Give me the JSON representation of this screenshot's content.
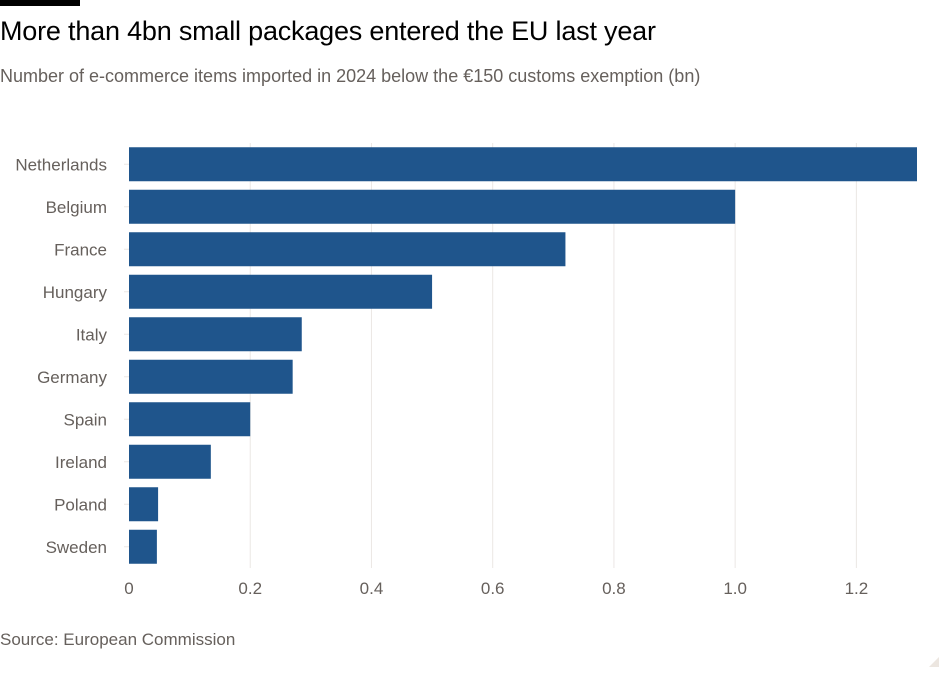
{
  "header": {
    "title": "More than 4bn small packages entered the EU last year",
    "subtitle": "Number of e-commerce items imported in 2024 below the €150 customs exemption (bn)"
  },
  "footer": {
    "source": "Source: European Commission"
  },
  "colors": {
    "bar": "#1f558c",
    "gridline": "#ebe7e4",
    "axis_text": "#66605c"
  },
  "chart_data": {
    "type": "bar",
    "orientation": "horizontal",
    "title": "More than 4bn small packages entered the EU last year",
    "subtitle": "Number of e-commerce items imported in 2024 below the €150 customs exemption (bn)",
    "categories": [
      "Netherlands",
      "Belgium",
      "France",
      "Hungary",
      "Italy",
      "Germany",
      "Spain",
      "Ireland",
      "Poland",
      "Sweden"
    ],
    "values": [
      1.3,
      1.0,
      0.72,
      0.5,
      0.285,
      0.27,
      0.2,
      0.135,
      0.048,
      0.046
    ],
    "xlim": [
      0,
      1.3
    ],
    "xticks": [
      0,
      0.2,
      0.4,
      0.6,
      0.8,
      1.0,
      1.2
    ],
    "xtick_labels": [
      "0",
      "0.2",
      "0.4",
      "0.6",
      "0.8",
      "1.0",
      "1.2"
    ],
    "xlabel": "",
    "ylabel": "",
    "grid": true
  }
}
